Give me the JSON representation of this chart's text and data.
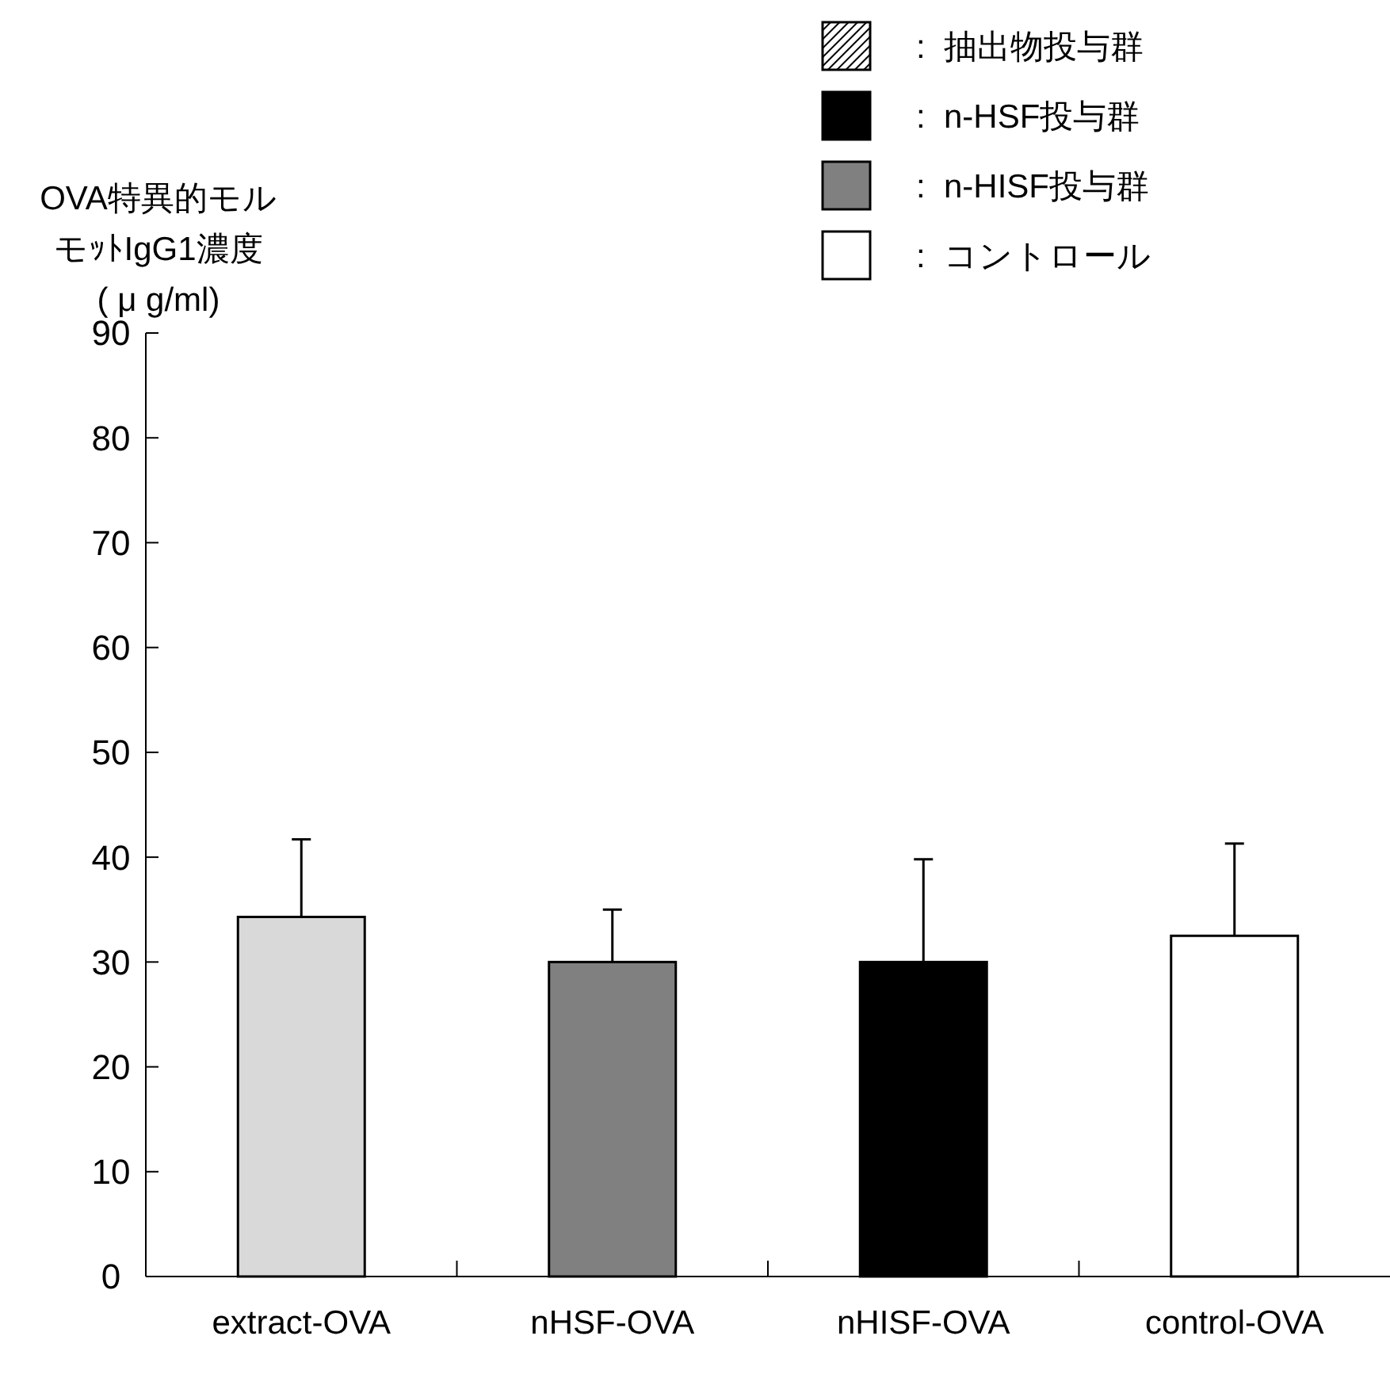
{
  "chart_data": {
    "type": "bar",
    "ylabel": "OVA特異的モルモｯﾄIgG1濃度( μ g/ml)",
    "categories": [
      "extract-OVA",
      "nHSF-OVA",
      "nHISF-OVA",
      "control-OVA"
    ],
    "values": [
      34.3,
      30.0,
      30.0,
      32.5
    ],
    "colors": [
      "#d9d9d9",
      "#808080",
      "#000000",
      "#ffffff"
    ],
    "errors": [
      [
        34.3,
        41.7
      ],
      [
        30.0,
        35.0
      ],
      [
        30.0,
        39.8
      ],
      [
        32.5,
        41.3
      ]
    ],
    "ylim": [
      0,
      90
    ],
    "yticks": [
      0,
      10,
      20,
      30,
      40,
      50,
      60,
      70,
      80,
      90
    ],
    "grid": false,
    "annotations": [
      ":  抽出物投与群",
      ":  n-HSF投与群",
      ":  n-HISF投与群",
      ":  コントロール"
    ]
  }
}
